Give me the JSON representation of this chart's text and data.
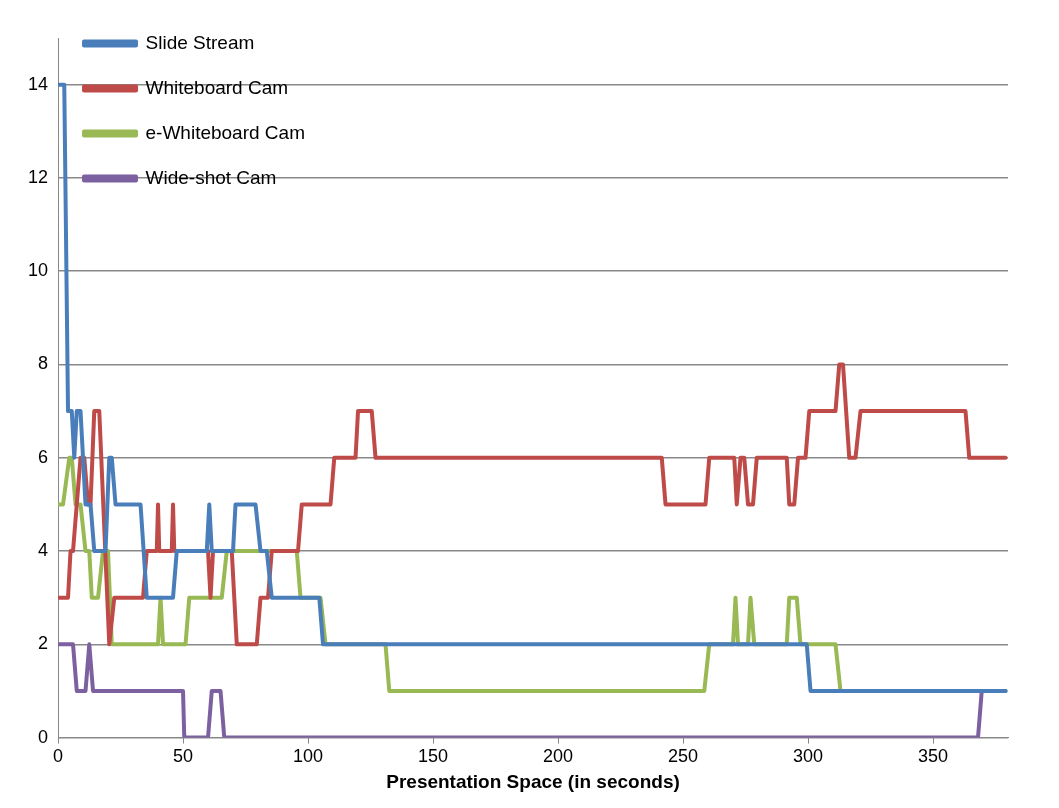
{
  "chart_data": {
    "type": "line",
    "xlabel": "Presentation Space (in seconds)",
    "xlim": [
      0,
      380
    ],
    "xticks": [
      0,
      50,
      100,
      150,
      200,
      250,
      300,
      350
    ],
    "ylim": [
      0,
      15
    ],
    "yticks": [
      0,
      2,
      4,
      6,
      8,
      10,
      12,
      14
    ],
    "grid": "y",
    "legend": "top left",
    "marker": "none",
    "line_style": "solid",
    "series": [
      {
        "name": "Slide Stream",
        "color": "#4a7ebb",
        "x": [
          0,
          2.5,
          4,
          5.5,
          6.5,
          7.5,
          9,
          11,
          13,
          14.5,
          19,
          20.5,
          21.5,
          23,
          33,
          35.5,
          46,
          47.5,
          59.5,
          60.5,
          61.5,
          70,
          71,
          79,
          81,
          83.5,
          85.5,
          104.5,
          106,
          299.5,
          301,
          379
        ],
        "values": [
          14,
          14,
          7,
          7,
          6,
          7,
          7,
          5,
          5,
          4,
          4,
          6,
          6,
          5,
          5,
          3,
          3,
          4,
          4,
          5,
          4,
          4,
          5,
          5,
          4,
          4,
          3,
          3,
          2,
          2,
          1,
          1
        ]
      },
      {
        "name": "Whiteboard Cam",
        "color": "#be4b48",
        "x": [
          0,
          4,
          5,
          6,
          9,
          10.5,
          12,
          13,
          14.5,
          16.5,
          20.5,
          22.5,
          34,
          35.5,
          39.5,
          40,
          40.5,
          45.5,
          46,
          46.5,
          60,
          61,
          62,
          69.5,
          70.5,
          71.5,
          79.5,
          81,
          84,
          85.5,
          96,
          97.5,
          109,
          110.5,
          119,
          120,
          125.5,
          127,
          241.5,
          243,
          259,
          260.5,
          270.5,
          271.5,
          273,
          274.5,
          276,
          278,
          279.5,
          291.5,
          292.5,
          294.5,
          296,
          299,
          300.5,
          311,
          312.5,
          314,
          316.5,
          319,
          321,
          363,
          364.5,
          379
        ],
        "values": [
          3,
          3,
          4,
          4,
          6,
          6,
          5,
          5,
          7,
          7,
          2,
          3,
          3,
          4,
          4,
          5,
          4,
          4,
          5,
          4,
          4,
          3,
          4,
          4,
          3,
          2,
          2,
          3,
          3,
          4,
          4,
          5,
          5,
          6,
          6,
          7,
          7,
          6,
          6,
          5,
          5,
          6,
          6,
          5,
          6,
          6,
          5,
          5,
          6,
          6,
          5,
          5,
          6,
          6,
          7,
          7,
          8,
          8,
          6,
          6,
          7,
          7,
          6,
          6
        ]
      },
      {
        "name": "e-Whiteboard Cam",
        "color": "#98b954",
        "x": [
          0,
          2,
          4.5,
          5.5,
          7,
          9,
          11,
          12.5,
          13.5,
          16,
          18,
          20,
          21.5,
          40,
          41,
          42,
          51,
          52.5,
          65.5,
          67.5,
          95.5,
          97,
          105,
          107,
          131,
          132.5,
          258.5,
          260.5,
          270,
          271,
          272,
          276,
          277,
          278.5,
          291.5,
          292.5,
          295.5,
          297,
          311,
          313,
          379
        ],
        "values": [
          5,
          5,
          6,
          6,
          5,
          5,
          4,
          4,
          3,
          3,
          4,
          4,
          2,
          2,
          3,
          2,
          2,
          3,
          3,
          4,
          4,
          3,
          3,
          2,
          2,
          1,
          1,
          2,
          2,
          3,
          2,
          2,
          3,
          2,
          2,
          3,
          3,
          2,
          2,
          1,
          1
        ]
      },
      {
        "name": "Wide-shot Cam",
        "color": "#7d60a0",
        "x": [
          0,
          6,
          7.5,
          11,
          12.5,
          14,
          50,
          50.5,
          60,
          61.5,
          65,
          66.5,
          368,
          369.5,
          379
        ],
        "values": [
          2,
          2,
          1,
          1,
          2,
          1,
          1,
          0,
          0,
          1,
          1,
          0,
          0,
          1,
          1
        ]
      }
    ]
  }
}
